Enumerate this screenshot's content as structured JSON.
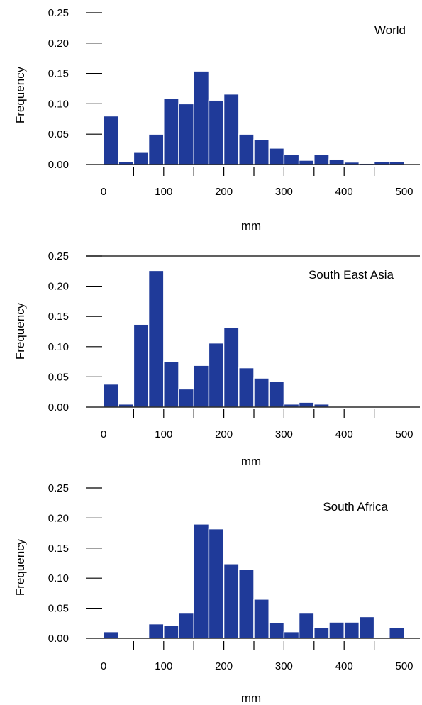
{
  "chart_data": [
    {
      "type": "bar",
      "title": "World",
      "xlabel": "mm",
      "ylabel": "Frequency",
      "bin_width": 25,
      "x": [
        12.5,
        37.5,
        62.5,
        87.5,
        112.5,
        137.5,
        162.5,
        187.5,
        212.5,
        237.5,
        262.5,
        287.5,
        312.5,
        337.5,
        362.5,
        387.5,
        412.5,
        437.5,
        462.5,
        487.5
      ],
      "values": [
        0.08,
        0.005,
        0.02,
        0.05,
        0.109,
        0.1,
        0.154,
        0.106,
        0.116,
        0.05,
        0.041,
        0.027,
        0.016,
        0.007,
        0.016,
        0.009,
        0.004,
        0.002,
        0.005,
        0.005
      ],
      "xlim": [
        0,
        500
      ],
      "ylim": [
        0,
        0.25
      ],
      "x_ticks": [
        "0",
        "100",
        "200",
        "300",
        "400",
        "500"
      ],
      "y_ticks": [
        "0.00",
        "0.05",
        "0.10",
        "0.15",
        "0.20",
        "0.25"
      ],
      "bar_color": "#1f3a99"
    },
    {
      "type": "bar",
      "title": "South East Asia",
      "xlabel": "mm",
      "ylabel": "Frequency",
      "bin_width": 25,
      "x": [
        12.5,
        37.5,
        62.5,
        87.5,
        112.5,
        137.5,
        162.5,
        187.5,
        212.5,
        237.5,
        262.5,
        287.5,
        312.5,
        337.5,
        362.5
      ],
      "values": [
        0.038,
        0.005,
        0.137,
        0.226,
        0.075,
        0.03,
        0.069,
        0.106,
        0.132,
        0.065,
        0.048,
        0.043,
        0.005,
        0.008,
        0.005
      ],
      "xlim": [
        0,
        500
      ],
      "ylim": [
        0,
        0.25
      ],
      "x_ticks": [
        "0",
        "100",
        "200",
        "300",
        "400",
        "500"
      ],
      "y_ticks": [
        "0.00",
        "0.05",
        "0.10",
        "0.15",
        "0.20",
        "0.25"
      ],
      "bar_color": "#1f3a99"
    },
    {
      "type": "bar",
      "title": "South Africa",
      "xlabel": "mm",
      "ylabel": "Frequency",
      "bin_width": 25,
      "x": [
        12.5,
        62.5,
        87.5,
        112.5,
        137.5,
        162.5,
        187.5,
        212.5,
        237.5,
        262.5,
        287.5,
        312.5,
        337.5,
        362.5,
        387.5,
        412.5,
        437.5,
        462.5,
        487.5
      ],
      "values": [
        0.011,
        0.002,
        0.024,
        0.022,
        0.043,
        0.19,
        0.182,
        0.124,
        0.115,
        0.065,
        0.026,
        0.011,
        0.043,
        0.018,
        0.027,
        0.027,
        0.036,
        0.002,
        0.018
      ],
      "xlim": [
        0,
        500
      ],
      "ylim": [
        0,
        0.25
      ],
      "x_ticks": [
        "0",
        "100",
        "200",
        "300",
        "400",
        "500"
      ],
      "y_ticks": [
        "0.00",
        "0.05",
        "0.10",
        "0.15",
        "0.20",
        "0.25"
      ],
      "bar_color": "#1f3a99"
    }
  ]
}
